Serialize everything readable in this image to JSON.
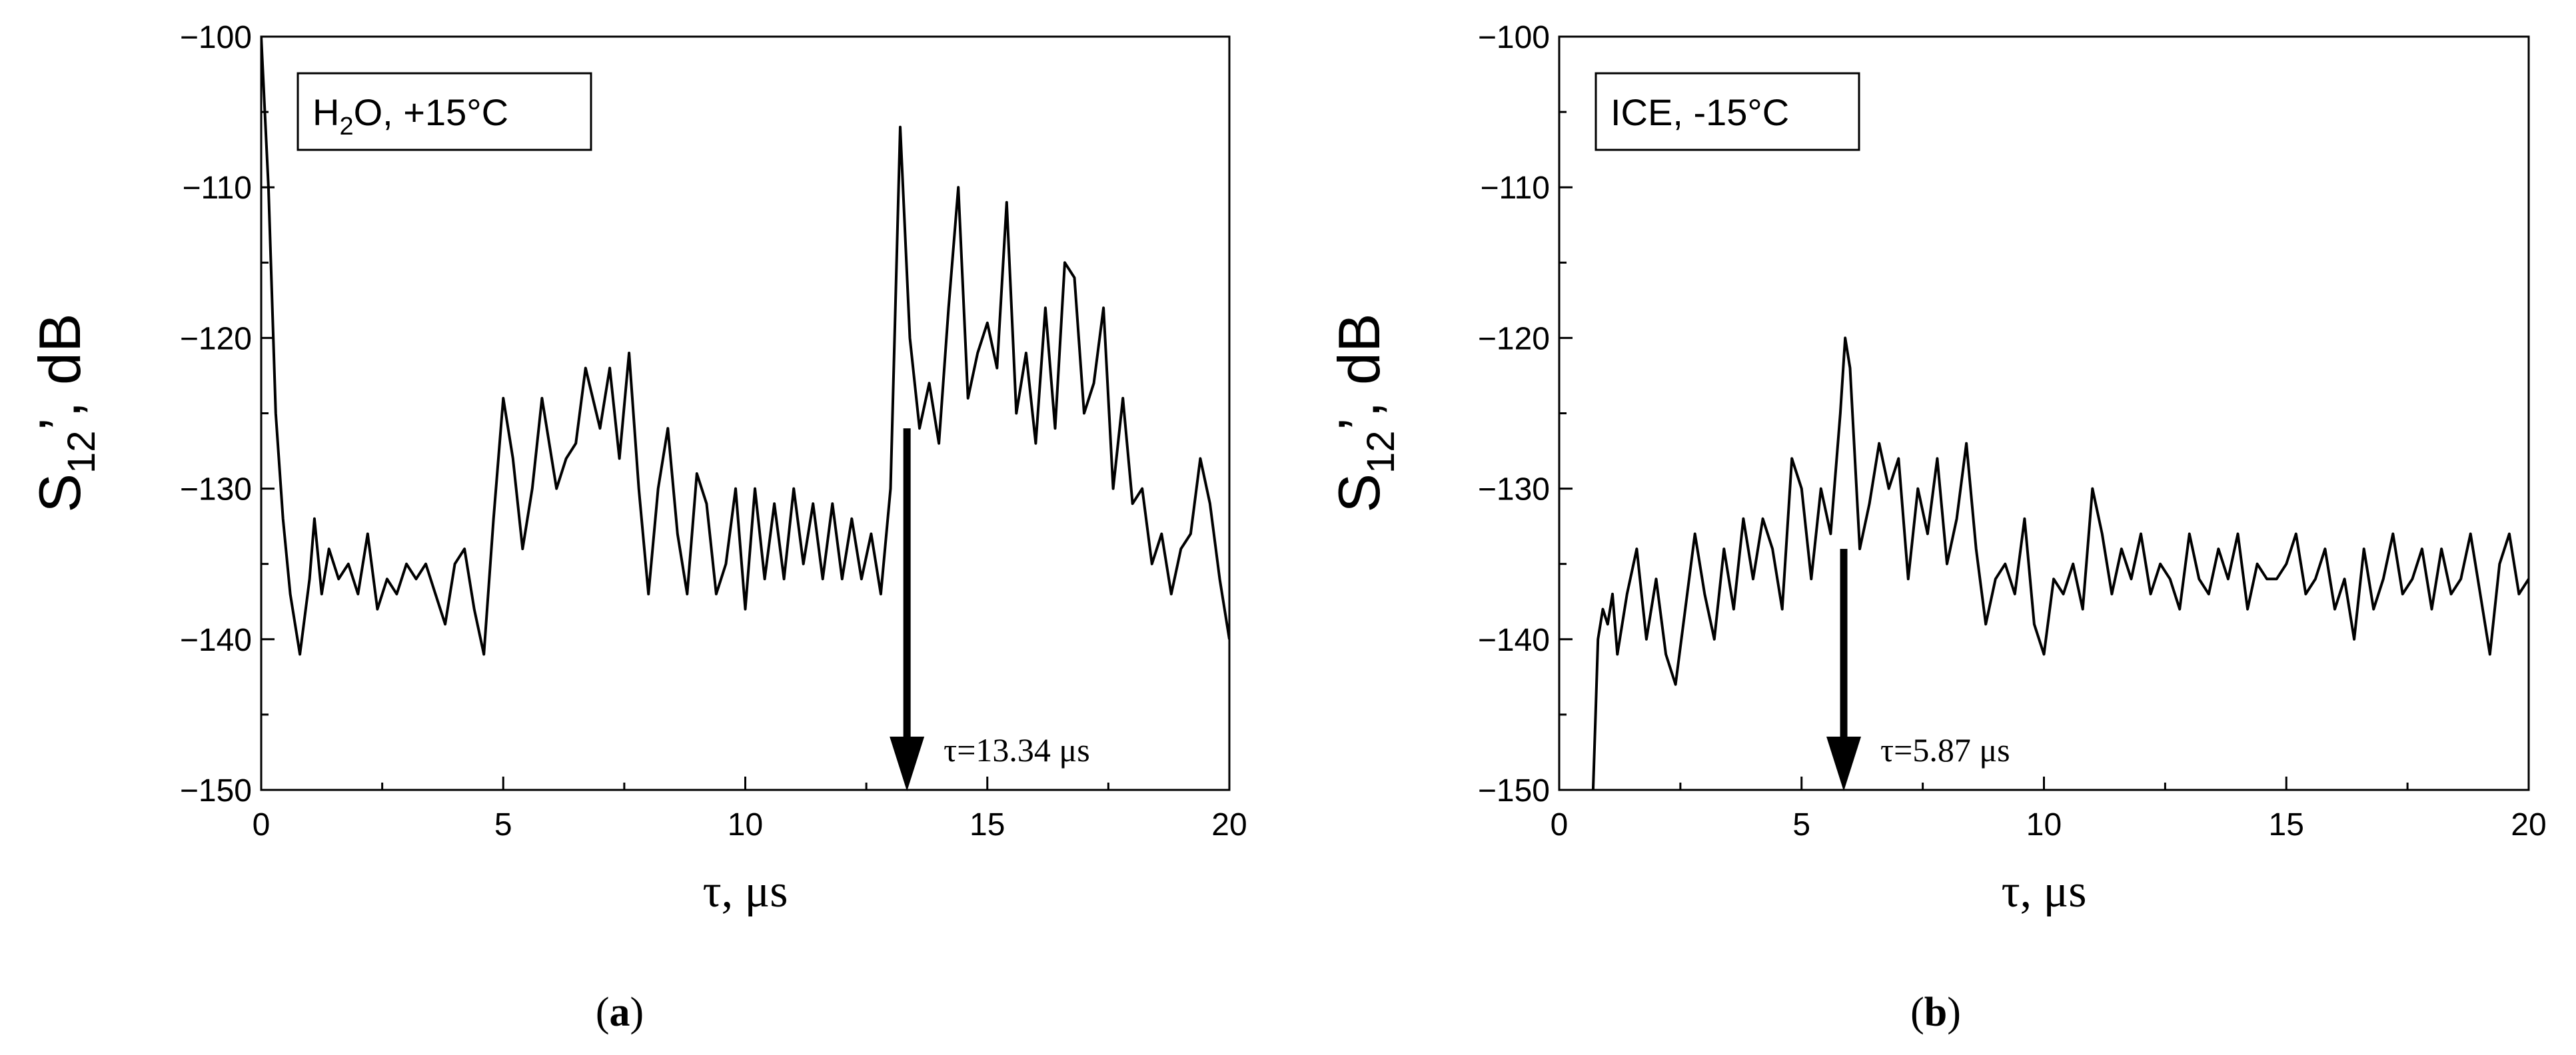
{
  "colors": {
    "line": "#000000",
    "background": "#ffffff"
  },
  "chart_data": [
    {
      "type": "line",
      "panel_label": "(a)",
      "legend": "H2O, +15°C",
      "legend_parts": {
        "main": "H",
        "sub": "2",
        "rest": "O, +15°C"
      },
      "ylabel": {
        "main": "S",
        "sub": "12",
        "rest": "’, dB"
      },
      "xlabel": "τ, μs",
      "xlim": [
        0,
        20
      ],
      "ylim": [
        -150,
        -100
      ],
      "xticks": [
        "0",
        "5",
        "10",
        "15",
        "20"
      ],
      "yticks": [
        "−100",
        "−110",
        "−120",
        "−130",
        "−140",
        "−150"
      ],
      "grid": false,
      "annotation": {
        "text": "τ=13.34 μs",
        "x": 13.34,
        "y_from": -126,
        "y_to": -150
      },
      "series": [
        {
          "x": [
            0.0,
            0.15,
            0.3,
            0.45,
            0.6,
            0.8,
            1.0,
            1.1,
            1.25,
            1.4,
            1.6,
            1.8,
            2.0,
            2.2,
            2.4,
            2.6,
            2.8,
            3.0,
            3.2,
            3.4,
            3.6,
            3.8,
            4.0,
            4.2,
            4.4,
            4.6,
            4.8,
            5.0,
            5.2,
            5.4,
            5.6,
            5.8,
            6.1,
            6.3,
            6.5,
            6.7,
            7.0,
            7.2,
            7.4,
            7.6,
            7.8,
            8.0,
            8.2,
            8.4,
            8.6,
            8.8,
            9.0,
            9.2,
            9.4,
            9.6,
            9.8,
            10.0,
            10.2,
            10.4,
            10.6,
            10.8,
            11.0,
            11.2,
            11.4,
            11.6,
            11.8,
            12.0,
            12.2,
            12.4,
            12.6,
            12.8,
            13.0,
            13.2,
            13.4,
            13.6,
            13.8,
            14.0,
            14.2,
            14.4,
            14.6,
            14.8,
            15.0,
            15.2,
            15.4,
            15.6,
            15.8,
            16.0,
            16.2,
            16.4,
            16.6,
            16.8,
            17.0,
            17.2,
            17.4,
            17.6,
            17.8,
            18.0,
            18.2,
            18.4,
            18.6,
            18.8,
            19.0,
            19.2,
            19.4,
            19.6,
            19.8,
            20.0
          ],
          "y": [
            -100,
            -110,
            -125,
            -132,
            -137,
            -141,
            -136,
            -132,
            -137,
            -134,
            -136,
            -135,
            -137,
            -133,
            -138,
            -136,
            -137,
            -135,
            -136,
            -135,
            -137,
            -139,
            -135,
            -134,
            -138,
            -141,
            -132,
            -124,
            -128,
            -134,
            -130,
            -124,
            -130,
            -128,
            -127,
            -122,
            -126,
            -122,
            -128,
            -121,
            -130,
            -137,
            -130,
            -126,
            -133,
            -137,
            -129,
            -131,
            -137,
            -135,
            -130,
            -138,
            -130,
            -136,
            -131,
            -136,
            -130,
            -135,
            -131,
            -136,
            -131,
            -136,
            -132,
            -136,
            -133,
            -137,
            -130,
            -106,
            -120,
            -126,
            -123,
            -127,
            -118,
            -110,
            -124,
            -121,
            -119,
            -122,
            -111,
            -125,
            -121,
            -127,
            -118,
            -126,
            -115,
            -116,
            -125,
            -123,
            -118,
            -130,
            -124,
            -131,
            -130,
            -135,
            -133,
            -137,
            -134,
            -133,
            -128,
            -131,
            -136,
            -140
          ]
        }
      ]
    },
    {
      "type": "line",
      "panel_label": "(b)",
      "legend": "ICE, -15°C",
      "ylabel": {
        "main": "S",
        "sub": "12",
        "rest": "’, dB"
      },
      "xlabel": "τ, μs",
      "xlim": [
        0,
        20
      ],
      "ylim": [
        -150,
        -100
      ],
      "xticks": [
        "0",
        "5",
        "10",
        "15",
        "20"
      ],
      "yticks": [
        "−100",
        "−110",
        "−120",
        "−130",
        "−140",
        "−150"
      ],
      "grid": false,
      "annotation": {
        "text": "τ=5.87 μs",
        "x": 5.87,
        "y_from": -134,
        "y_to": -150
      },
      "series": [
        {
          "x": [
            0.7,
            0.75,
            0.8,
            0.9,
            1.0,
            1.1,
            1.2,
            1.4,
            1.6,
            1.8,
            2.0,
            2.2,
            2.4,
            2.6,
            2.8,
            3.0,
            3.2,
            3.4,
            3.6,
            3.8,
            4.0,
            4.2,
            4.4,
            4.6,
            4.8,
            5.0,
            5.2,
            5.4,
            5.6,
            5.8,
            5.9,
            6.0,
            6.2,
            6.4,
            6.6,
            6.8,
            7.0,
            7.2,
            7.4,
            7.6,
            7.8,
            8.0,
            8.2,
            8.4,
            8.6,
            8.8,
            9.0,
            9.2,
            9.4,
            9.6,
            9.8,
            10.0,
            10.2,
            10.4,
            10.6,
            10.8,
            11.0,
            11.2,
            11.4,
            11.6,
            11.8,
            12.0,
            12.2,
            12.4,
            12.6,
            12.8,
            13.0,
            13.2,
            13.4,
            13.6,
            13.8,
            14.0,
            14.2,
            14.4,
            14.6,
            14.8,
            15.0,
            15.2,
            15.4,
            15.6,
            15.8,
            16.0,
            16.2,
            16.4,
            16.6,
            16.8,
            17.0,
            17.2,
            17.4,
            17.6,
            17.8,
            18.0,
            18.2,
            18.4,
            18.6,
            18.8,
            19.0,
            19.2,
            19.4,
            19.6,
            19.8,
            20.0
          ],
          "y": [
            -150,
            -145,
            -140,
            -138,
            -139,
            -137,
            -141,
            -137,
            -134,
            -140,
            -136,
            -141,
            -143,
            -138,
            -133,
            -137,
            -140,
            -134,
            -138,
            -132,
            -136,
            -132,
            -134,
            -138,
            -128,
            -130,
            -136,
            -130,
            -133,
            -125,
            -120,
            -122,
            -134,
            -131,
            -127,
            -130,
            -128,
            -136,
            -130,
            -133,
            -128,
            -135,
            -132,
            -127,
            -134,
            -139,
            -136,
            -135,
            -137,
            -132,
            -139,
            -141,
            -136,
            -137,
            -135,
            -138,
            -130,
            -133,
            -137,
            -134,
            -136,
            -133,
            -137,
            -135,
            -136,
            -138,
            -133,
            -136,
            -137,
            -134,
            -136,
            -133,
            -138,
            -135,
            -136,
            -136,
            -135,
            -133,
            -137,
            -136,
            -134,
            -138,
            -136,
            -140,
            -134,
            -138,
            -136,
            -133,
            -137,
            -136,
            -134,
            -138,
            -134,
            -137,
            -136,
            -133,
            -137,
            -141,
            -135,
            -133,
            -137,
            -136
          ]
        }
      ]
    }
  ]
}
